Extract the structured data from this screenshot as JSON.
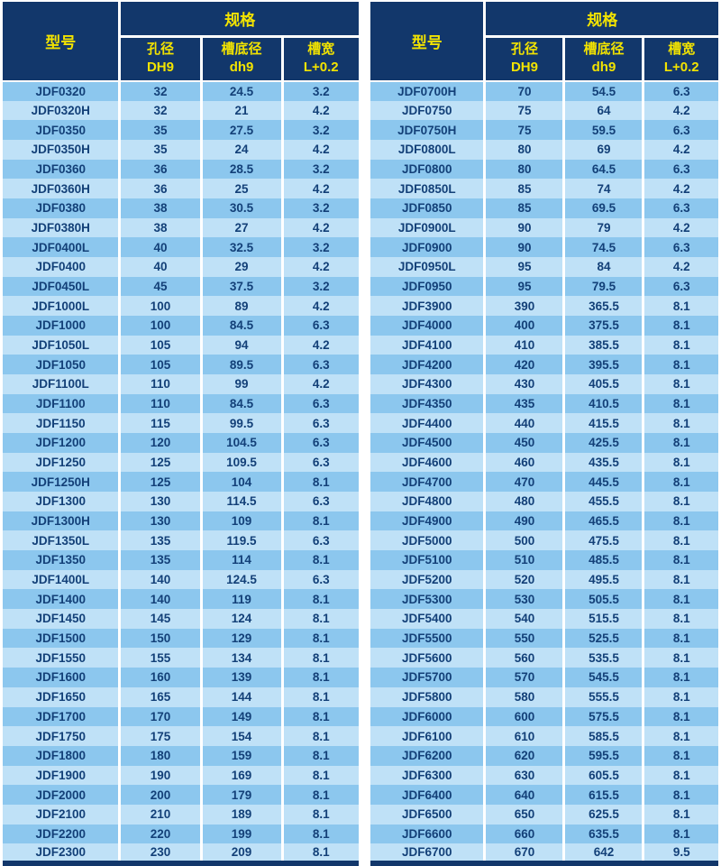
{
  "colors": {
    "navy": "#12376b",
    "yellow": "#f2e300",
    "row-dark": "#8cc7ee",
    "row-light": "#bfe1f7",
    "text-navy": "#134078",
    "page-bg": "#ffffff"
  },
  "header": {
    "model_label": "型号",
    "spec_label": "规格",
    "columns": [
      {
        "line1": "孔径",
        "line2": "DH9"
      },
      {
        "line1": "槽底径",
        "line2": "dh9"
      },
      {
        "line1": "槽宽",
        "line2": "L+0.2"
      }
    ]
  },
  "tables": [
    {
      "rows": [
        [
          "JDF0320",
          "32",
          "24.5",
          "3.2"
        ],
        [
          "JDF0320H",
          "32",
          "21",
          "4.2"
        ],
        [
          "JDF0350",
          "35",
          "27.5",
          "3.2"
        ],
        [
          "JDF0350H",
          "35",
          "24",
          "4.2"
        ],
        [
          "JDF0360",
          "36",
          "28.5",
          "3.2"
        ],
        [
          "JDF0360H",
          "36",
          "25",
          "4.2"
        ],
        [
          "JDF0380",
          "38",
          "30.5",
          "3.2"
        ],
        [
          "JDF0380H",
          "38",
          "27",
          "4.2"
        ],
        [
          "JDF0400L",
          "40",
          "32.5",
          "3.2"
        ],
        [
          "JDF0400",
          "40",
          "29",
          "4.2"
        ],
        [
          "JDF0450L",
          "45",
          "37.5",
          "3.2"
        ],
        [
          "JDF1000L",
          "100",
          "89",
          "4.2"
        ],
        [
          "JDF1000",
          "100",
          "84.5",
          "6.3"
        ],
        [
          "JDF1050L",
          "105",
          "94",
          "4.2"
        ],
        [
          "JDF1050",
          "105",
          "89.5",
          "6.3"
        ],
        [
          "JDF1100L",
          "110",
          "99",
          "4.2"
        ],
        [
          "JDF1100",
          "110",
          "84.5",
          "6.3"
        ],
        [
          "JDF1150",
          "115",
          "99.5",
          "6.3"
        ],
        [
          "JDF1200",
          "120",
          "104.5",
          "6.3"
        ],
        [
          "JDF1250",
          "125",
          "109.5",
          "6.3"
        ],
        [
          "JDF1250H",
          "125",
          "104",
          "8.1"
        ],
        [
          "JDF1300",
          "130",
          "114.5",
          "6.3"
        ],
        [
          "JDF1300H",
          "130",
          "109",
          "8.1"
        ],
        [
          "JDF1350L",
          "135",
          "119.5",
          "6.3"
        ],
        [
          "JDF1350",
          "135",
          "114",
          "8.1"
        ],
        [
          "JDF1400L",
          "140",
          "124.5",
          "6.3"
        ],
        [
          "JDF1400",
          "140",
          "119",
          "8.1"
        ],
        [
          "JDF1450",
          "145",
          "124",
          "8.1"
        ],
        [
          "JDF1500",
          "150",
          "129",
          "8.1"
        ],
        [
          "JDF1550",
          "155",
          "134",
          "8.1"
        ],
        [
          "JDF1600",
          "160",
          "139",
          "8.1"
        ],
        [
          "JDF1650",
          "165",
          "144",
          "8.1"
        ],
        [
          "JDF1700",
          "170",
          "149",
          "8.1"
        ],
        [
          "JDF1750",
          "175",
          "154",
          "8.1"
        ],
        [
          "JDF1800",
          "180",
          "159",
          "8.1"
        ],
        [
          "JDF1900",
          "190",
          "169",
          "8.1"
        ],
        [
          "JDF2000",
          "200",
          "179",
          "8.1"
        ],
        [
          "JDF2100",
          "210",
          "189",
          "8.1"
        ],
        [
          "JDF2200",
          "220",
          "199",
          "8.1"
        ],
        [
          "JDF2300",
          "230",
          "209",
          "8.1"
        ]
      ]
    },
    {
      "rows": [
        [
          "JDF0700H",
          "70",
          "54.5",
          "6.3"
        ],
        [
          "JDF0750",
          "75",
          "64",
          "4.2"
        ],
        [
          "JDF0750H",
          "75",
          "59.5",
          "6.3"
        ],
        [
          "JDF0800L",
          "80",
          "69",
          "4.2"
        ],
        [
          "JDF0800",
          "80",
          "64.5",
          "6.3"
        ],
        [
          "JDF0850L",
          "85",
          "74",
          "4.2"
        ],
        [
          "JDF0850",
          "85",
          "69.5",
          "6.3"
        ],
        [
          "JDF0900L",
          "90",
          "79",
          "4.2"
        ],
        [
          "JDF0900",
          "90",
          "74.5",
          "6.3"
        ],
        [
          "JDF0950L",
          "95",
          "84",
          "4.2"
        ],
        [
          "JDF0950",
          "95",
          "79.5",
          "6.3"
        ],
        [
          "JDF3900",
          "390",
          "365.5",
          "8.1"
        ],
        [
          "JDF4000",
          "400",
          "375.5",
          "8.1"
        ],
        [
          "JDF4100",
          "410",
          "385.5",
          "8.1"
        ],
        [
          "JDF4200",
          "420",
          "395.5",
          "8.1"
        ],
        [
          "JDF4300",
          "430",
          "405.5",
          "8.1"
        ],
        [
          "JDF4350",
          "435",
          "410.5",
          "8.1"
        ],
        [
          "JDF4400",
          "440",
          "415.5",
          "8.1"
        ],
        [
          "JDF4500",
          "450",
          "425.5",
          "8.1"
        ],
        [
          "JDF4600",
          "460",
          "435.5",
          "8.1"
        ],
        [
          "JDF4700",
          "470",
          "445.5",
          "8.1"
        ],
        [
          "JDF4800",
          "480",
          "455.5",
          "8.1"
        ],
        [
          "JDF4900",
          "490",
          "465.5",
          "8.1"
        ],
        [
          "JDF5000",
          "500",
          "475.5",
          "8.1"
        ],
        [
          "JDF5100",
          "510",
          "485.5",
          "8.1"
        ],
        [
          "JDF5200",
          "520",
          "495.5",
          "8.1"
        ],
        [
          "JDF5300",
          "530",
          "505.5",
          "8.1"
        ],
        [
          "JDF5400",
          "540",
          "515.5",
          "8.1"
        ],
        [
          "JDF5500",
          "550",
          "525.5",
          "8.1"
        ],
        [
          "JDF5600",
          "560",
          "535.5",
          "8.1"
        ],
        [
          "JDF5700",
          "570",
          "545.5",
          "8.1"
        ],
        [
          "JDF5800",
          "580",
          "555.5",
          "8.1"
        ],
        [
          "JDF6000",
          "600",
          "575.5",
          "8.1"
        ],
        [
          "JDF6100",
          "610",
          "585.5",
          "8.1"
        ],
        [
          "JDF6200",
          "620",
          "595.5",
          "8.1"
        ],
        [
          "JDF6300",
          "630",
          "605.5",
          "8.1"
        ],
        [
          "JDF6400",
          "640",
          "615.5",
          "8.1"
        ],
        [
          "JDF6500",
          "650",
          "625.5",
          "8.1"
        ],
        [
          "JDF6600",
          "660",
          "635.5",
          "8.1"
        ],
        [
          "JDF6700",
          "670",
          "642",
          "9.5"
        ]
      ]
    }
  ]
}
